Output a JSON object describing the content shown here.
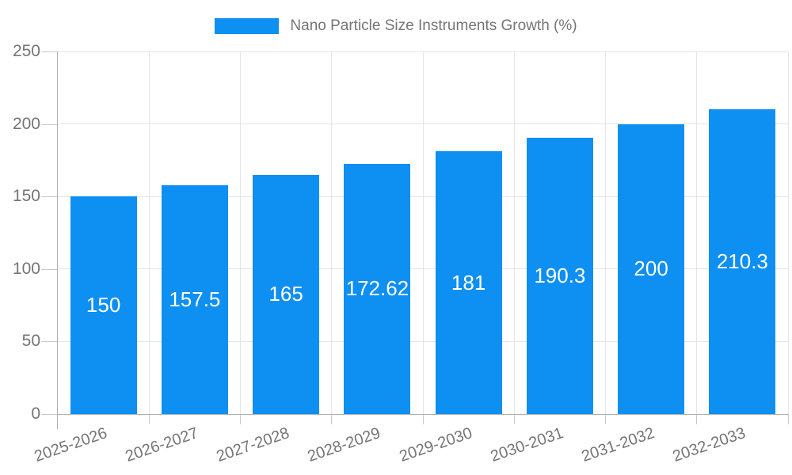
{
  "chart": {
    "legend": {
      "label": "Nano Particle Size Instruments Growth (%)"
    },
    "colors": {
      "bar": "#0e8ff2",
      "grid": "#e6e6e6",
      "axis_line": "#b0b0b0",
      "tick": "#c9c9c9",
      "axis_text": "#757575",
      "value_text": "#ffffff",
      "background": "#ffffff"
    }
  },
  "chart_data": {
    "type": "bar",
    "title": "Nano Particle Size Instruments Growth (%)",
    "categories": [
      "2025-2026",
      "2026-2027",
      "2027-2028",
      "2028-2029",
      "2029-2030",
      "2030-2031",
      "2031-2032",
      "2032-2033"
    ],
    "values": [
      150,
      157.5,
      165,
      172.62,
      181,
      190.3,
      200,
      210.3
    ],
    "value_labels": [
      "150",
      "157.5",
      "165",
      "172.62",
      "181",
      "190.3",
      "200",
      "210.3"
    ],
    "xlabel": "",
    "ylabel": "",
    "ylim": [
      0,
      250
    ],
    "yticks": [
      0,
      50,
      100,
      150,
      200,
      250
    ],
    "grid": true,
    "legend_position": "top",
    "bar_color": "#0e8ff2",
    "x_label_rotation": -19
  }
}
